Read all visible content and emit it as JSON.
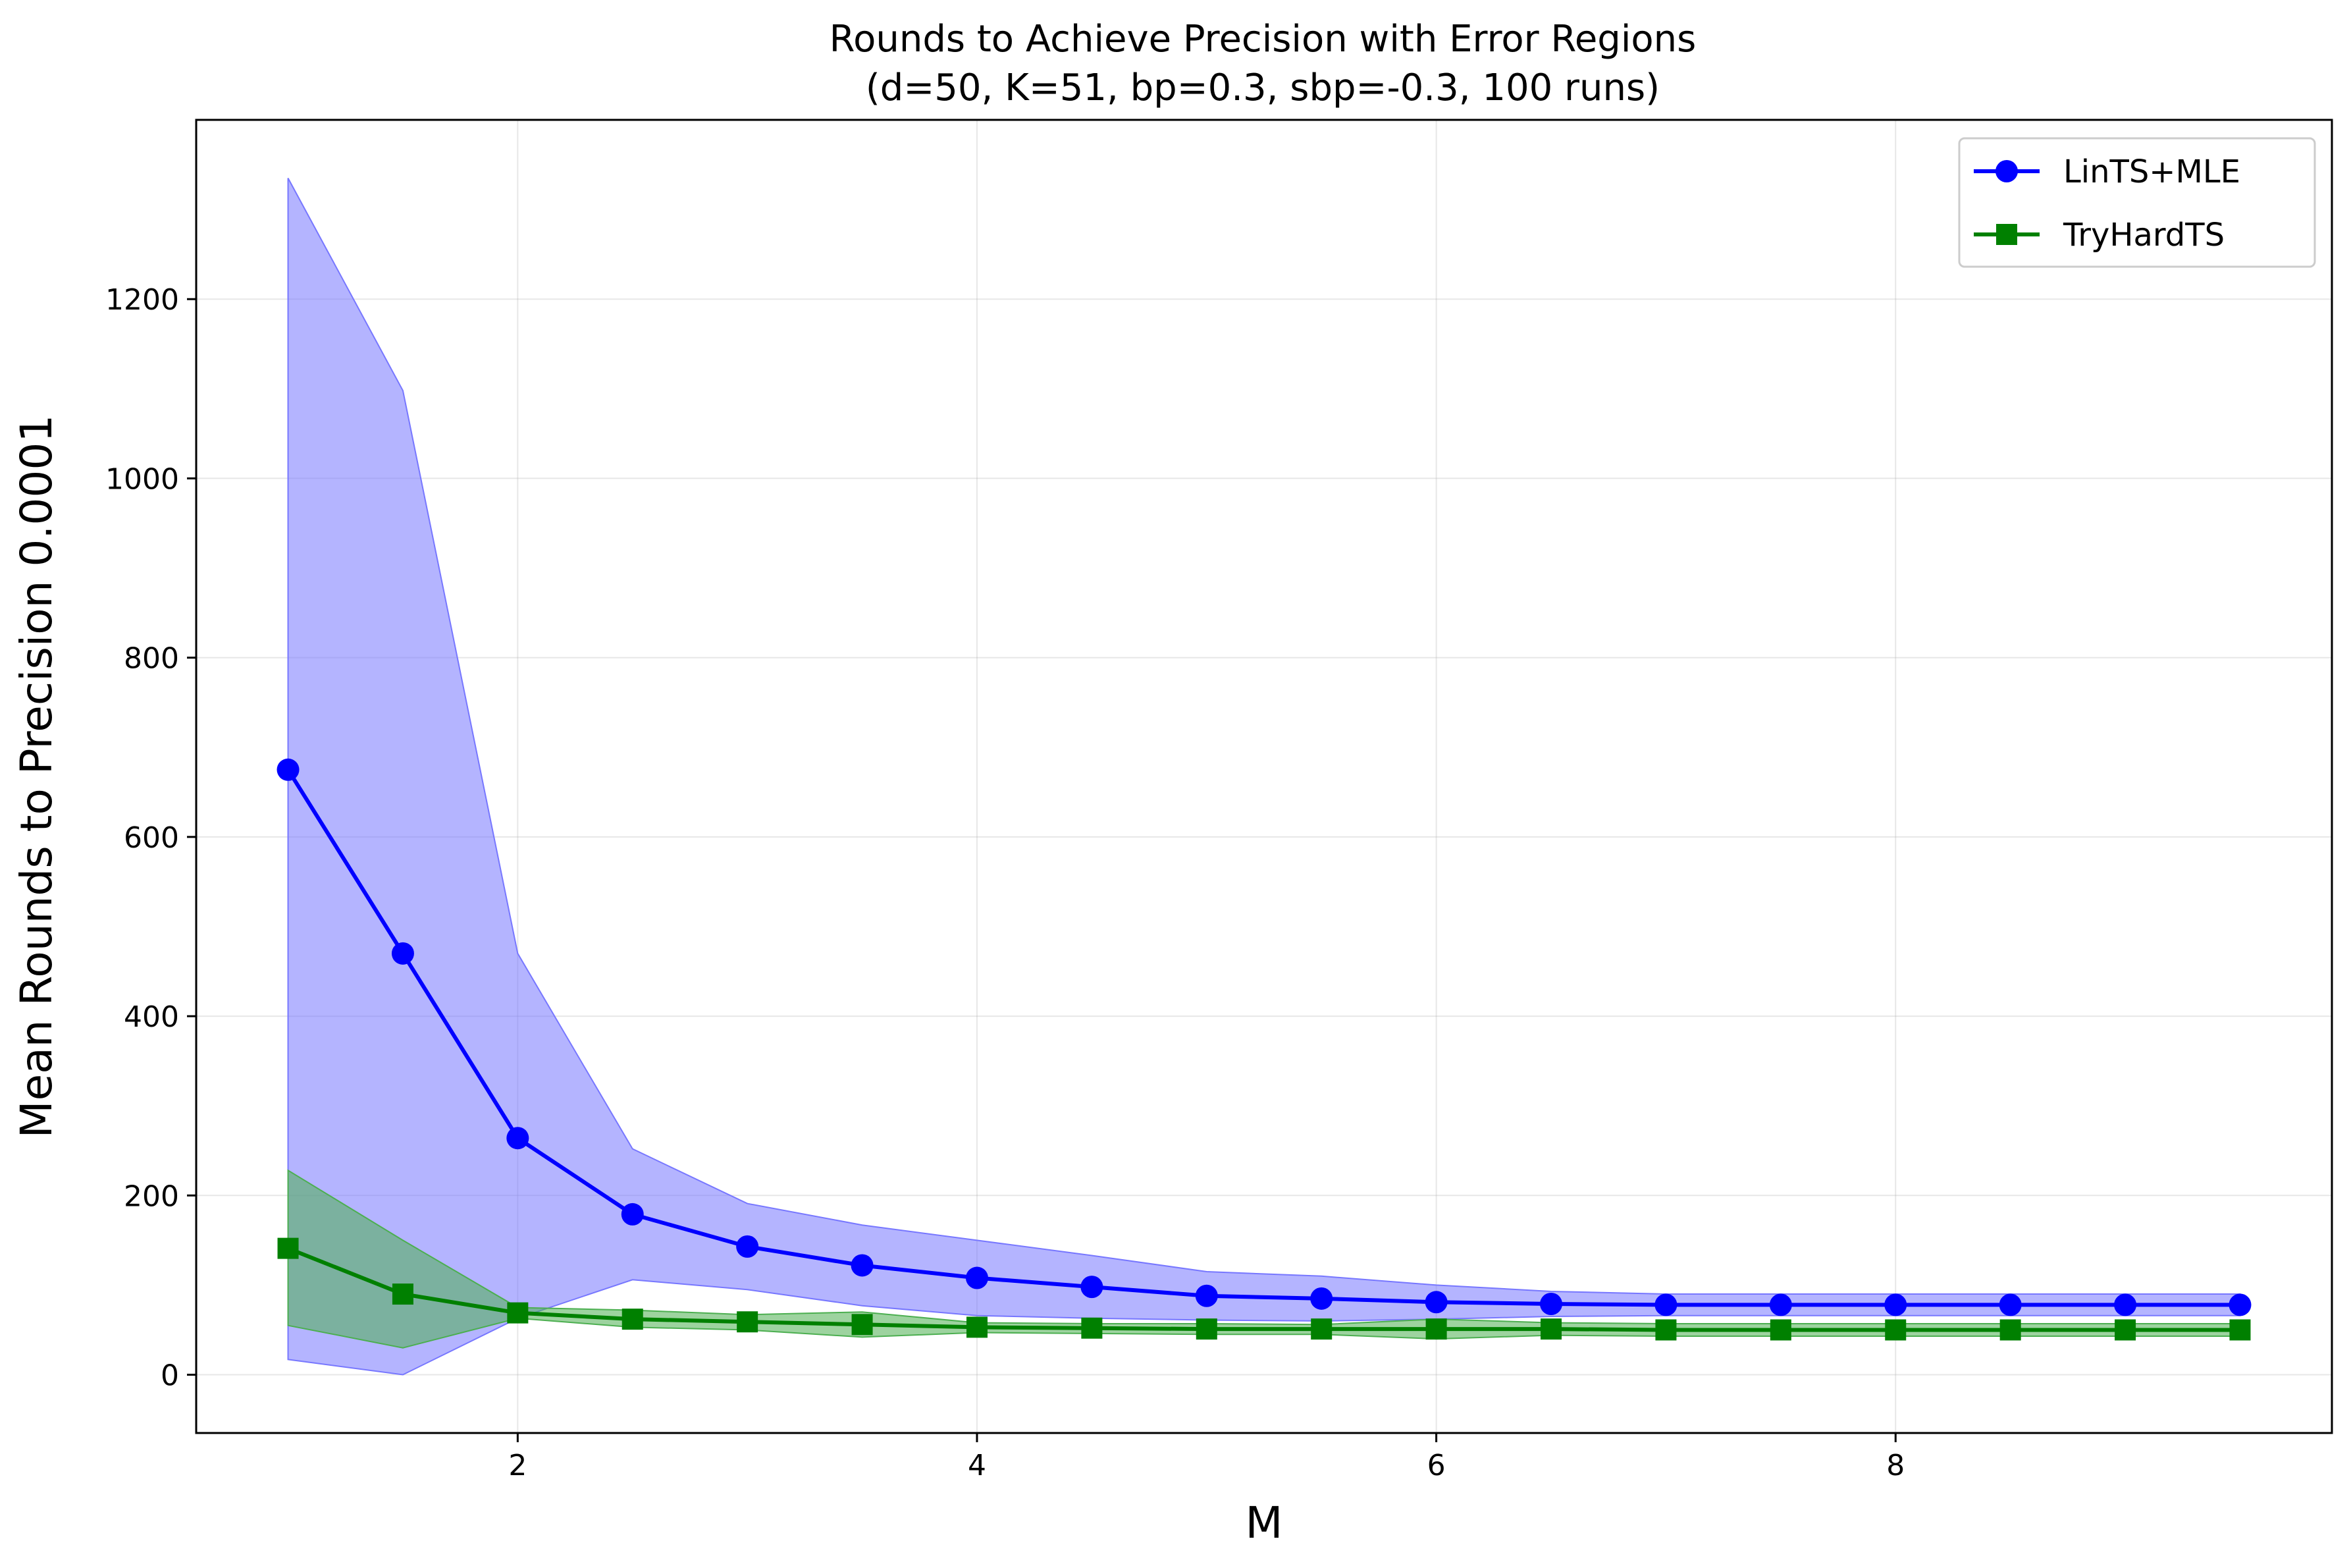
{
  "chart_data": {
    "type": "line",
    "title": "Rounds to Achieve Precision with Error Regions",
    "subtitle": "(d=50, K=51, bp=0.3, sbp=-0.3, 100 runs)",
    "xlabel": "M",
    "ylabel": "Mean Rounds to Precision 0.0001",
    "xlim": [
      0.6,
      9.9
    ],
    "ylim": [
      -65,
      1400
    ],
    "xticks": [
      2,
      4,
      6,
      8
    ],
    "yticks": [
      0,
      200,
      400,
      600,
      800,
      1000,
      1200
    ],
    "grid": true,
    "legend_position": "top-right",
    "x": [
      1.0,
      1.5,
      2.0,
      2.5,
      3.0,
      3.5,
      4.0,
      4.5,
      5.0,
      5.5,
      6.0,
      6.5,
      7.0,
      7.5,
      8.0,
      8.5,
      9.0,
      9.5
    ],
    "series": [
      {
        "name": "LinTS+MLE",
        "color": "#0000ff",
        "band_color": "#7777ff",
        "marker": "circle",
        "values": [
          675,
          470,
          264,
          179,
          143,
          122,
          108,
          98,
          88,
          85,
          81,
          79,
          78,
          78,
          78,
          78,
          78,
          78
        ],
        "upper": [
          1335,
          1098,
          470,
          252,
          191,
          167,
          150,
          133,
          115,
          110,
          100,
          93,
          90,
          90,
          90,
          90,
          90,
          90
        ],
        "lower": [
          17,
          0,
          63,
          106,
          95,
          77,
          66,
          63,
          61,
          60,
          62,
          65,
          66,
          66,
          66,
          66,
          66,
          66
        ]
      },
      {
        "name": "TryHardTS",
        "color": "#008000",
        "band_color": "#4caf50",
        "marker": "square",
        "values": [
          141,
          90,
          69,
          62,
          59,
          56,
          53,
          52,
          51,
          51,
          51,
          51,
          50,
          50,
          50,
          50,
          50,
          50
        ],
        "upper": [
          228,
          150,
          75,
          72,
          67,
          70,
          58,
          57,
          57,
          56,
          62,
          58,
          57,
          57,
          57,
          57,
          57,
          57
        ],
        "lower": [
          55,
          30,
          63,
          53,
          50,
          42,
          47,
          46,
          45,
          45,
          40,
          44,
          43,
          43,
          43,
          43,
          43,
          43
        ]
      }
    ]
  }
}
